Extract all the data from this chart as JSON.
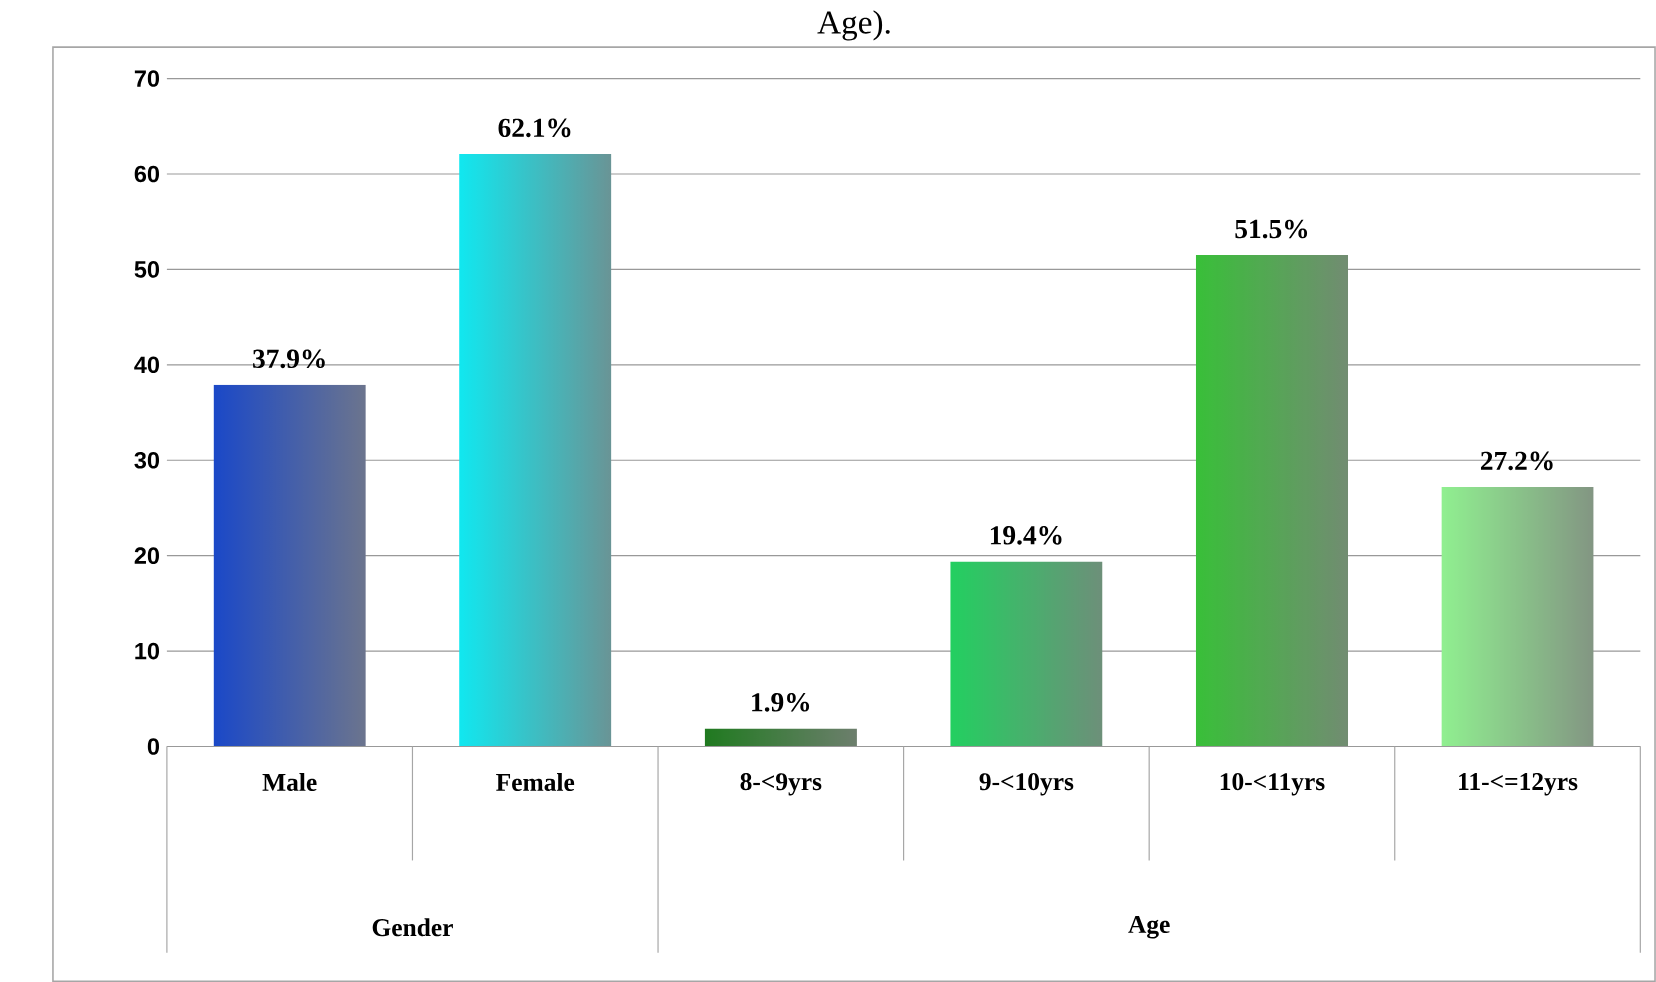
{
  "chart_data": {
    "type": "bar",
    "title": "Age).",
    "categories": [
      "Male",
      "Female",
      "8-<9yrs",
      "9-<10yrs",
      "10-<11yrs",
      "11-<=12yrs"
    ],
    "values": [
      37.9,
      62.1,
      1.9,
      19.4,
      51.5,
      27.2
    ],
    "value_labels": [
      "37.9%",
      "62.1%",
      "1.9%",
      "19.4%",
      "51.5%",
      "27.2%"
    ],
    "colors": [
      "#1a48c8",
      "#10e8f0",
      "#1f7a1f",
      "#22d060",
      "#38c038",
      "#90f090"
    ],
    "annotations": [
      "Gender",
      "Age"
    ],
    "ylim": [
      0,
      70
    ],
    "yticks": [
      0,
      10,
      20,
      30,
      40,
      50,
      60,
      70
    ],
    "grid": "y"
  }
}
